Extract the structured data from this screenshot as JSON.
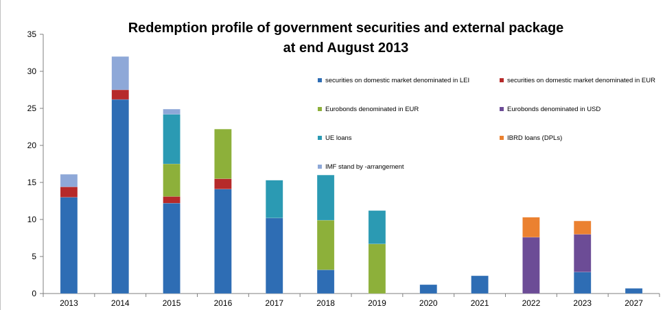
{
  "chart_data": {
    "type": "bar",
    "stacked": true,
    "title_lines": [
      "Redemption profile of government securities and external package",
      "at end August 2013"
    ],
    "xlabel": "",
    "ylabel": "",
    "ylim": [
      0,
      35
    ],
    "yticks": [
      0,
      5,
      10,
      15,
      20,
      25,
      30,
      35
    ],
    "grid": false,
    "legend_position": "upper-right",
    "categories": [
      "2013",
      "2014",
      "2015",
      "2016",
      "2017",
      "2018",
      "2019",
      "2020",
      "2021",
      "2022",
      "2023",
      "2027"
    ],
    "series": [
      {
        "name": "securities  on domestic market denominated in LEI",
        "color": "#2E6DB4",
        "values": [
          13.0,
          26.2,
          12.2,
          14.1,
          10.2,
          3.2,
          0,
          1.2,
          2.4,
          0,
          2.9,
          0.7
        ]
      },
      {
        "name": "securities  on domestic market denominated in EUR",
        "color": "#B62A2A",
        "values": [
          1.4,
          1.3,
          0.9,
          1.4,
          0,
          0,
          0,
          0,
          0,
          0,
          0,
          0
        ]
      },
      {
        "name": "Eurobonds denominated in EUR",
        "color": "#8DB03A",
        "values": [
          0,
          0,
          4.4,
          6.7,
          0,
          6.7,
          6.7,
          0,
          0,
          0,
          0,
          0
        ]
      },
      {
        "name": "Eurobonds denominated in USD",
        "color": "#6C4C96",
        "values": [
          0,
          0,
          0,
          0,
          0,
          0,
          0,
          0,
          0,
          7.6,
          5.1,
          0
        ]
      },
      {
        "name": "UE loans",
        "color": "#2B9AB3",
        "values": [
          0,
          0,
          6.7,
          0,
          5.1,
          6.1,
          4.5,
          0,
          0,
          0,
          0,
          0
        ]
      },
      {
        "name": "IBRD loans (DPLs)",
        "color": "#EB8130",
        "values": [
          0,
          0,
          0,
          0,
          0,
          0,
          0,
          0,
          0,
          2.7,
          1.8,
          0
        ]
      },
      {
        "name": "IMF stand by -arrangement",
        "color": "#8EA8D8",
        "values": [
          1.7,
          4.5,
          0.7,
          0,
          0,
          0,
          0,
          0,
          0,
          0,
          0,
          0
        ]
      }
    ]
  }
}
